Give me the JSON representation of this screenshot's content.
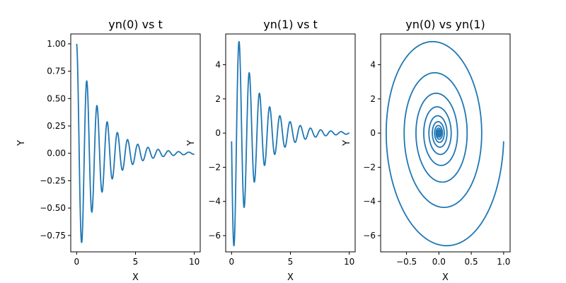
{
  "chart_data": [
    {
      "type": "line",
      "title": "yn(0) vs t",
      "xlabel": "X",
      "ylabel": "Y",
      "xlim": [
        -0.5,
        10.5
      ],
      "ylim": [
        -0.9,
        1.09
      ],
      "xticks": [
        0,
        5,
        10
      ],
      "xtick_labels": [
        "0",
        "5",
        "10"
      ],
      "yticks": [
        -0.75,
        -0.5,
        -0.25,
        0.0,
        0.25,
        0.5,
        0.75,
        1.0
      ],
      "ytick_labels": [
        "−0.75",
        "−0.50",
        "−0.25",
        "0.00",
        "0.25",
        "0.50",
        "0.75",
        "1.00"
      ],
      "grid": false,
      "series": [
        {
          "x": [
            0,
            0.43,
            0.87,
            1.3,
            1.74,
            2.17,
            2.6,
            3.04,
            3.47,
            3.91,
            4.34,
            4.77,
            5.21,
            5.64,
            6.08,
            6.51,
            6.94,
            7.38,
            7.81,
            8.25,
            8.68,
            9.11,
            9.55,
            9.98
          ],
          "y": [
            1.0,
            -0.81,
            0.67,
            -0.54,
            0.45,
            -0.37,
            0.3,
            -0.25,
            0.2,
            -0.17,
            0.14,
            -0.11,
            0.09,
            -0.08,
            0.06,
            -0.05,
            0.04,
            -0.035,
            0.03,
            -0.025,
            0.02,
            -0.015,
            0.012,
            0.0
          ]
        }
      ]
    },
    {
      "type": "line",
      "title": "yn(1) vs t",
      "xlabel": "X",
      "ylabel": "Y",
      "xlim": [
        -0.5,
        10.5
      ],
      "ylim": [
        -6.95,
        5.8
      ],
      "xticks": [
        0,
        5,
        10
      ],
      "xtick_labels": [
        "0",
        "5",
        "10"
      ],
      "yticks": [
        -6,
        -4,
        -2,
        0,
        2,
        4
      ],
      "ytick_labels": [
        "−6",
        "−4",
        "−2",
        "0",
        "2",
        "4"
      ],
      "grid": false,
      "series": [
        {
          "x": [
            0,
            0.22,
            0.65,
            1.09,
            1.52,
            1.95,
            2.39,
            2.82,
            3.26,
            3.69,
            4.12,
            4.56,
            4.99,
            5.43,
            5.86,
            6.29,
            6.73,
            7.16,
            7.6,
            8.03,
            8.46,
            8.9,
            9.33,
            9.77,
            10.0
          ],
          "y": [
            0,
            -6.4,
            5.25,
            -4.3,
            3.55,
            -2.95,
            2.4,
            -1.98,
            1.63,
            -1.35,
            1.1,
            -0.91,
            0.75,
            -0.62,
            0.51,
            -0.42,
            0.35,
            -0.29,
            0.24,
            -0.2,
            0.16,
            -0.13,
            0.1,
            -0.08,
            0.0
          ]
        }
      ]
    },
    {
      "type": "line",
      "title": "yn(0) vs yn(1)",
      "xlabel": "X",
      "ylabel": "Y",
      "xlim": [
        -0.9,
        1.1
      ],
      "ylim": [
        -6.95,
        5.8
      ],
      "xticks": [
        -0.5,
        0.0,
        0.5,
        1.0
      ],
      "xtick_labels": [
        "−0.5",
        "0.0",
        "0.5",
        "1.0"
      ],
      "yticks": [
        -6,
        -4,
        -2,
        0,
        2,
        4
      ],
      "ytick_labels": [
        "−6",
        "−4",
        "−2",
        "0",
        "2",
        "4"
      ],
      "grid": false,
      "series": [
        {
          "x": [
            1.0,
            -0.81,
            0.67,
            -0.54,
            0.45,
            -0.37,
            0.3,
            -0.25,
            0.2,
            -0.17,
            0.14,
            -0.11,
            0.09,
            -0.08,
            0.06,
            -0.05,
            0.04,
            0.0
          ],
          "y": [
            0.0,
            -6.4,
            5.25,
            -4.3,
            3.55,
            -2.95,
            2.4,
            -1.98,
            1.63,
            -1.35,
            1.1,
            -0.91,
            0.75,
            -0.62,
            0.51,
            -0.42,
            0.35,
            0.0
          ]
        }
      ]
    }
  ]
}
